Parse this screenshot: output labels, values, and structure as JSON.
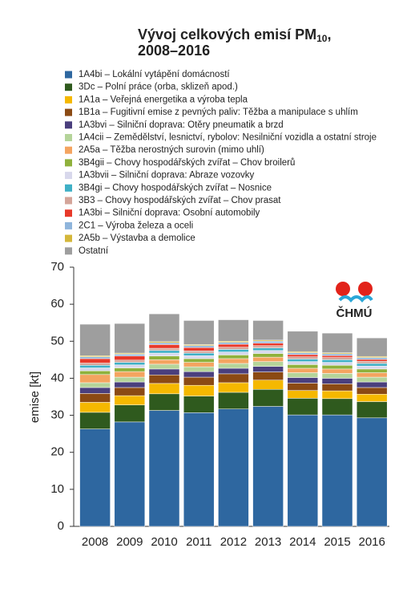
{
  "chart_data": {
    "type": "stacked_bar",
    "title": "Vývoj celkových emisí PM",
    "title_subscript": "10",
    "title_suffix": ",",
    "subtitle": "2008–2016",
    "y_label": "emise  [kt]",
    "logo_text": "ČHMÚ",
    "categories": [
      "2008",
      "2009",
      "2010",
      "2011",
      "2012",
      "2013",
      "2014",
      "2015",
      "2016"
    ],
    "ylim": [
      0,
      70
    ],
    "yticks": [
      0,
      10,
      20,
      30,
      40,
      50,
      60,
      70
    ],
    "series": [
      {
        "name": "1A4bi – Lokální vytápění domácností",
        "color": "#2e67a0",
        "values": [
          26.3,
          28.2,
          31.3,
          30.7,
          31.7,
          32.4,
          30.1,
          30.1,
          29.3
        ]
      },
      {
        "name": "3Dc – Polní práce (orba, sklizeň apod.)",
        "color": "#2f5a1e",
        "values": [
          4.5,
          4.6,
          4.5,
          4.5,
          4.5,
          4.6,
          4.5,
          4.4,
          4.4
        ]
      },
      {
        "name": "1A1a – Veřejná energetika a výroba tepla",
        "color": "#f5b800",
        "values": [
          2.7,
          2.5,
          2.8,
          2.9,
          2.6,
          2.5,
          2.1,
          2.1,
          2.0
        ]
      },
      {
        "name": "1B1a – Fugitivní emise z pevných paliv: Těžba a manipulace s uhlím",
        "color": "#8b4a14",
        "values": [
          2.4,
          2.2,
          2.3,
          2.2,
          2.4,
          2.2,
          2.0,
          1.9,
          1.8
        ]
      },
      {
        "name": "1A3bvi – Silniční doprava: Otěry pneumatik a brzd",
        "color": "#4a3f7d",
        "values": [
          1.6,
          1.5,
          1.6,
          1.5,
          1.5,
          1.5,
          1.5,
          1.5,
          1.5
        ]
      },
      {
        "name": "1A4cii – Zemědělství, lesnictví, rybolov: Nesilniční vozidla a ostatní stroje",
        "color": "#b5d49a",
        "values": [
          1.3,
          1.3,
          1.3,
          1.3,
          1.3,
          1.3,
          1.3,
          1.3,
          1.3
        ]
      },
      {
        "name": "2A5a – Těžba nerostných surovin (mimo uhlí)",
        "color": "#f4a460",
        "values": [
          2.2,
          1.5,
          1.2,
          1.2,
          1.3,
          1.2,
          1.2,
          1.2,
          1.2
        ]
      },
      {
        "name": "3B4gii – Chovy hospodářských zvířat – Chov broilerů",
        "color": "#8fb13c",
        "values": [
          1.0,
          1.0,
          1.0,
          1.0,
          1.0,
          1.0,
          1.0,
          1.0,
          1.0
        ]
      },
      {
        "name": "1A3bvii – Silniční doprava: Abraze vozovky",
        "color": "#d8d8ec",
        "values": [
          0.8,
          0.8,
          0.8,
          0.8,
          0.8,
          0.8,
          0.8,
          0.8,
          0.8
        ]
      },
      {
        "name": "3B4gi – Chovy hospodářských zvířat – Nosnice",
        "color": "#3fb0c6",
        "values": [
          0.7,
          0.7,
          0.7,
          0.7,
          0.7,
          0.7,
          0.7,
          0.7,
          0.7
        ]
      },
      {
        "name": "3B3 – Chovy hospodářských zvířat – Chov prasat",
        "color": "#d4a59a",
        "values": [
          0.6,
          0.6,
          0.6,
          0.6,
          0.6,
          0.6,
          0.6,
          0.6,
          0.6
        ]
      },
      {
        "name": "1A3bi – Silniční doprava: Osobní automobily",
        "color": "#e8392a",
        "values": [
          1.2,
          1.1,
          1.0,
          0.9,
          0.8,
          0.7,
          0.6,
          0.5,
          0.5
        ]
      },
      {
        "name": "2C1 – Výroba železa a oceli",
        "color": "#8fb5dc",
        "values": [
          0.5,
          0.5,
          0.5,
          0.5,
          0.5,
          0.5,
          0.5,
          0.5,
          0.5
        ]
      },
      {
        "name": "2A5b – Výstavba a demolice",
        "color": "#d4b73a",
        "values": [
          0.3,
          0.3,
          0.3,
          0.3,
          0.3,
          0.3,
          0.3,
          0.3,
          0.3
        ]
      },
      {
        "name": "Ostatní",
        "color": "#9e9e9e",
        "values": [
          8.5,
          8.0,
          7.5,
          6.5,
          5.8,
          5.3,
          5.5,
          5.3,
          5.0
        ]
      }
    ]
  }
}
